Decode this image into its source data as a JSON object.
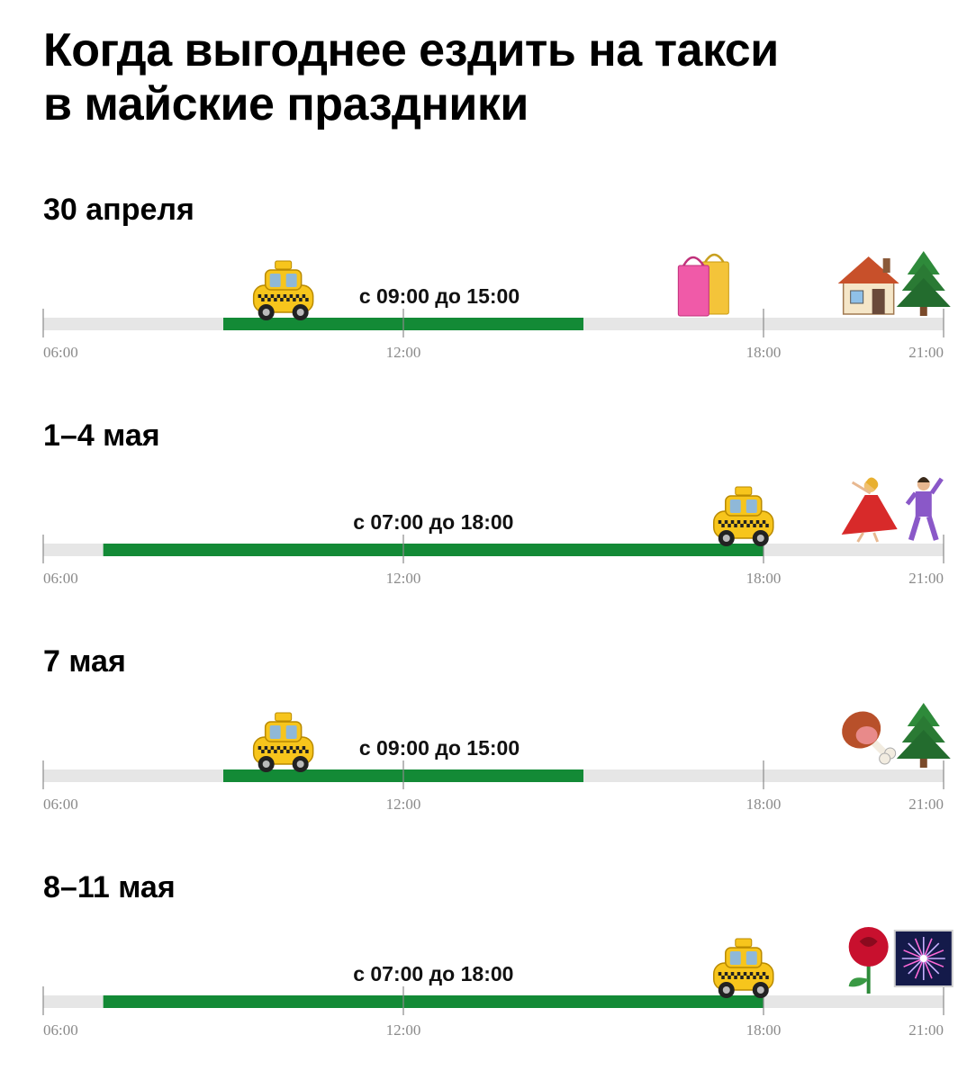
{
  "title": {
    "line1": "Когда выгоднее ездить на такси",
    "line2": "в майские праздники"
  },
  "colors": {
    "bar": "#138a36",
    "track": "#e6e6e6",
    "tick": "#8a8a8a"
  },
  "chart_data": [
    {
      "type": "timeline",
      "date": "30 апреля",
      "xlim": [
        "06:00",
        "21:00"
      ],
      "ticks": [
        "06:00",
        "12:00",
        "18:00",
        "21:00"
      ],
      "range": {
        "start": "09:00",
        "end": "15:00"
      },
      "range_label": "с 09:00 до 15:00",
      "icons": [
        {
          "name": "taxi-icon",
          "time": "10:00"
        },
        {
          "name": "shopping-bags-icon",
          "time": "17:00"
        },
        {
          "name": "house-icon",
          "time": "19:45"
        },
        {
          "name": "christmas-tree-icon",
          "time": "20:40"
        }
      ]
    },
    {
      "type": "timeline",
      "date": "1–4 мая",
      "xlim": [
        "06:00",
        "21:00"
      ],
      "ticks": [
        "06:00",
        "12:00",
        "18:00",
        "21:00"
      ],
      "range": {
        "start": "07:00",
        "end": "18:00"
      },
      "range_label": "с 07:00 до 18:00",
      "icons": [
        {
          "name": "taxi-icon",
          "time": "17:40"
        },
        {
          "name": "dancing-woman-icon",
          "time": "19:45"
        },
        {
          "name": "dancing-man-icon",
          "time": "20:40"
        }
      ]
    },
    {
      "type": "timeline",
      "date": "7 мая",
      "xlim": [
        "06:00",
        "21:00"
      ],
      "ticks": [
        "06:00",
        "12:00",
        "18:00",
        "21:00"
      ],
      "range": {
        "start": "09:00",
        "end": "15:00"
      },
      "range_label": "с 09:00 до 15:00",
      "icons": [
        {
          "name": "taxi-icon",
          "time": "10:00"
        },
        {
          "name": "meat-on-bone-icon",
          "time": "19:45"
        },
        {
          "name": "christmas-tree-icon",
          "time": "20:40"
        }
      ]
    },
    {
      "type": "timeline",
      "date": "8–11 мая",
      "xlim": [
        "06:00",
        "21:00"
      ],
      "ticks": [
        "06:00",
        "12:00",
        "18:00",
        "21:00"
      ],
      "range": {
        "start": "07:00",
        "end": "18:00"
      },
      "range_label": "с 07:00 до 18:00",
      "icons": [
        {
          "name": "taxi-icon",
          "time": "17:40"
        },
        {
          "name": "rose-icon",
          "time": "19:45"
        },
        {
          "name": "fireworks-icon",
          "time": "20:40"
        }
      ]
    }
  ]
}
